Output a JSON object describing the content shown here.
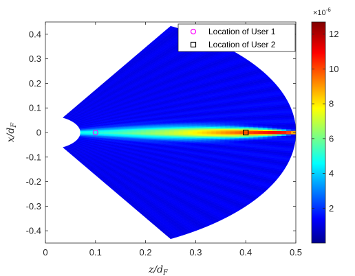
{
  "chart_data": {
    "type": "heatmap",
    "title": "",
    "xlabel": "z/d",
    "xlabel_sub": "F",
    "ylabel": "x/d",
    "ylabel_sub": "F",
    "xlim": [
      0,
      0.5
    ],
    "ylim": [
      -0.45,
      0.45
    ],
    "xticks": [
      0,
      0.1,
      0.2,
      0.3,
      0.4,
      0.5
    ],
    "xtick_labels": [
      "0",
      "0.1",
      "0.2",
      "0.3",
      "0.4",
      "0.5"
    ],
    "yticks": [
      0.4,
      0.3,
      0.2,
      0.1,
      0,
      -0.1,
      -0.2,
      -0.3,
      -0.4
    ],
    "ytick_labels": [
      "0.4",
      "0.3",
      "0.2",
      "0.1",
      "0",
      "-0.1",
      "-0.2",
      "-0.3",
      "-0.4"
    ],
    "region": {
      "inner_radius": 0.07,
      "outer_radius": 0.5,
      "max_angle_deg": 60
    },
    "colorbar": {
      "colormap": "jet",
      "min": 0,
      "max": 1.27e-05,
      "ticks": [
        2,
        4,
        6,
        8,
        10,
        12
      ],
      "tick_labels": [
        "2",
        "4",
        "6",
        "8",
        "10",
        "12"
      ],
      "exponent_label": "×10",
      "exponent_power": "-6"
    },
    "markers": [
      {
        "name": "Location of User 1",
        "x": 0.1,
        "y": 0,
        "shape": "circle",
        "color": "#ff00ff"
      },
      {
        "name": "Location of User 2",
        "x": 0.4,
        "y": 0,
        "shape": "square",
        "color": "#000000"
      }
    ],
    "legend_position": "top-right"
  }
}
